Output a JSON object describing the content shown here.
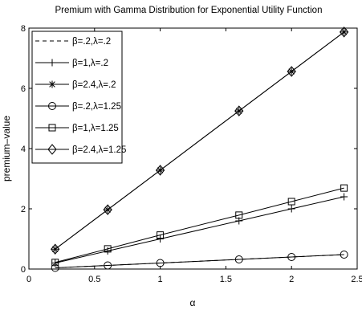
{
  "chart_data": {
    "type": "line",
    "title": "Premium with Gamma Distribution for Exponential Utility Function",
    "xlabel": "α",
    "ylabel": "premium–value",
    "xlim": [
      0,
      2.5
    ],
    "ylim": [
      0,
      8
    ],
    "xticks": [
      0,
      0.5,
      1,
      1.5,
      2,
      2.5
    ],
    "xtick_labels": [
      "0",
      "0.5",
      "1",
      "1.5",
      "2",
      "2.5"
    ],
    "yticks": [
      0,
      2,
      4,
      6,
      8
    ],
    "ytick_labels": [
      "0",
      "2",
      "4",
      "6",
      "8"
    ],
    "grid": false,
    "legend_position": "top-left",
    "x": [
      0.2,
      0.6,
      1.0,
      1.6,
      2.0,
      2.4
    ],
    "series": [
      {
        "name": "β=.2,λ=.2",
        "marker": "dash",
        "values": [
          0.04,
          0.12,
          0.2,
          0.32,
          0.4,
          0.48
        ]
      },
      {
        "name": "β=1,λ=.2",
        "marker": "plus",
        "values": [
          0.2,
          0.6,
          1.0,
          1.6,
          2.0,
          2.4
        ]
      },
      {
        "name": "β=2.4,λ=.2",
        "marker": "star",
        "values": [
          0.66,
          1.97,
          3.28,
          5.25,
          6.56,
          7.87
        ]
      },
      {
        "name": "β=.2,λ=1.25",
        "marker": "circle",
        "values": [
          0.04,
          0.12,
          0.2,
          0.32,
          0.4,
          0.48
        ]
      },
      {
        "name": "β=1,λ=1.25",
        "marker": "square",
        "values": [
          0.22,
          0.67,
          1.13,
          1.79,
          2.24,
          2.69
        ]
      },
      {
        "name": "β=2.4,λ=1.25",
        "marker": "diamond",
        "values": [
          0.66,
          1.97,
          3.28,
          5.25,
          6.56,
          7.87
        ]
      }
    ]
  }
}
